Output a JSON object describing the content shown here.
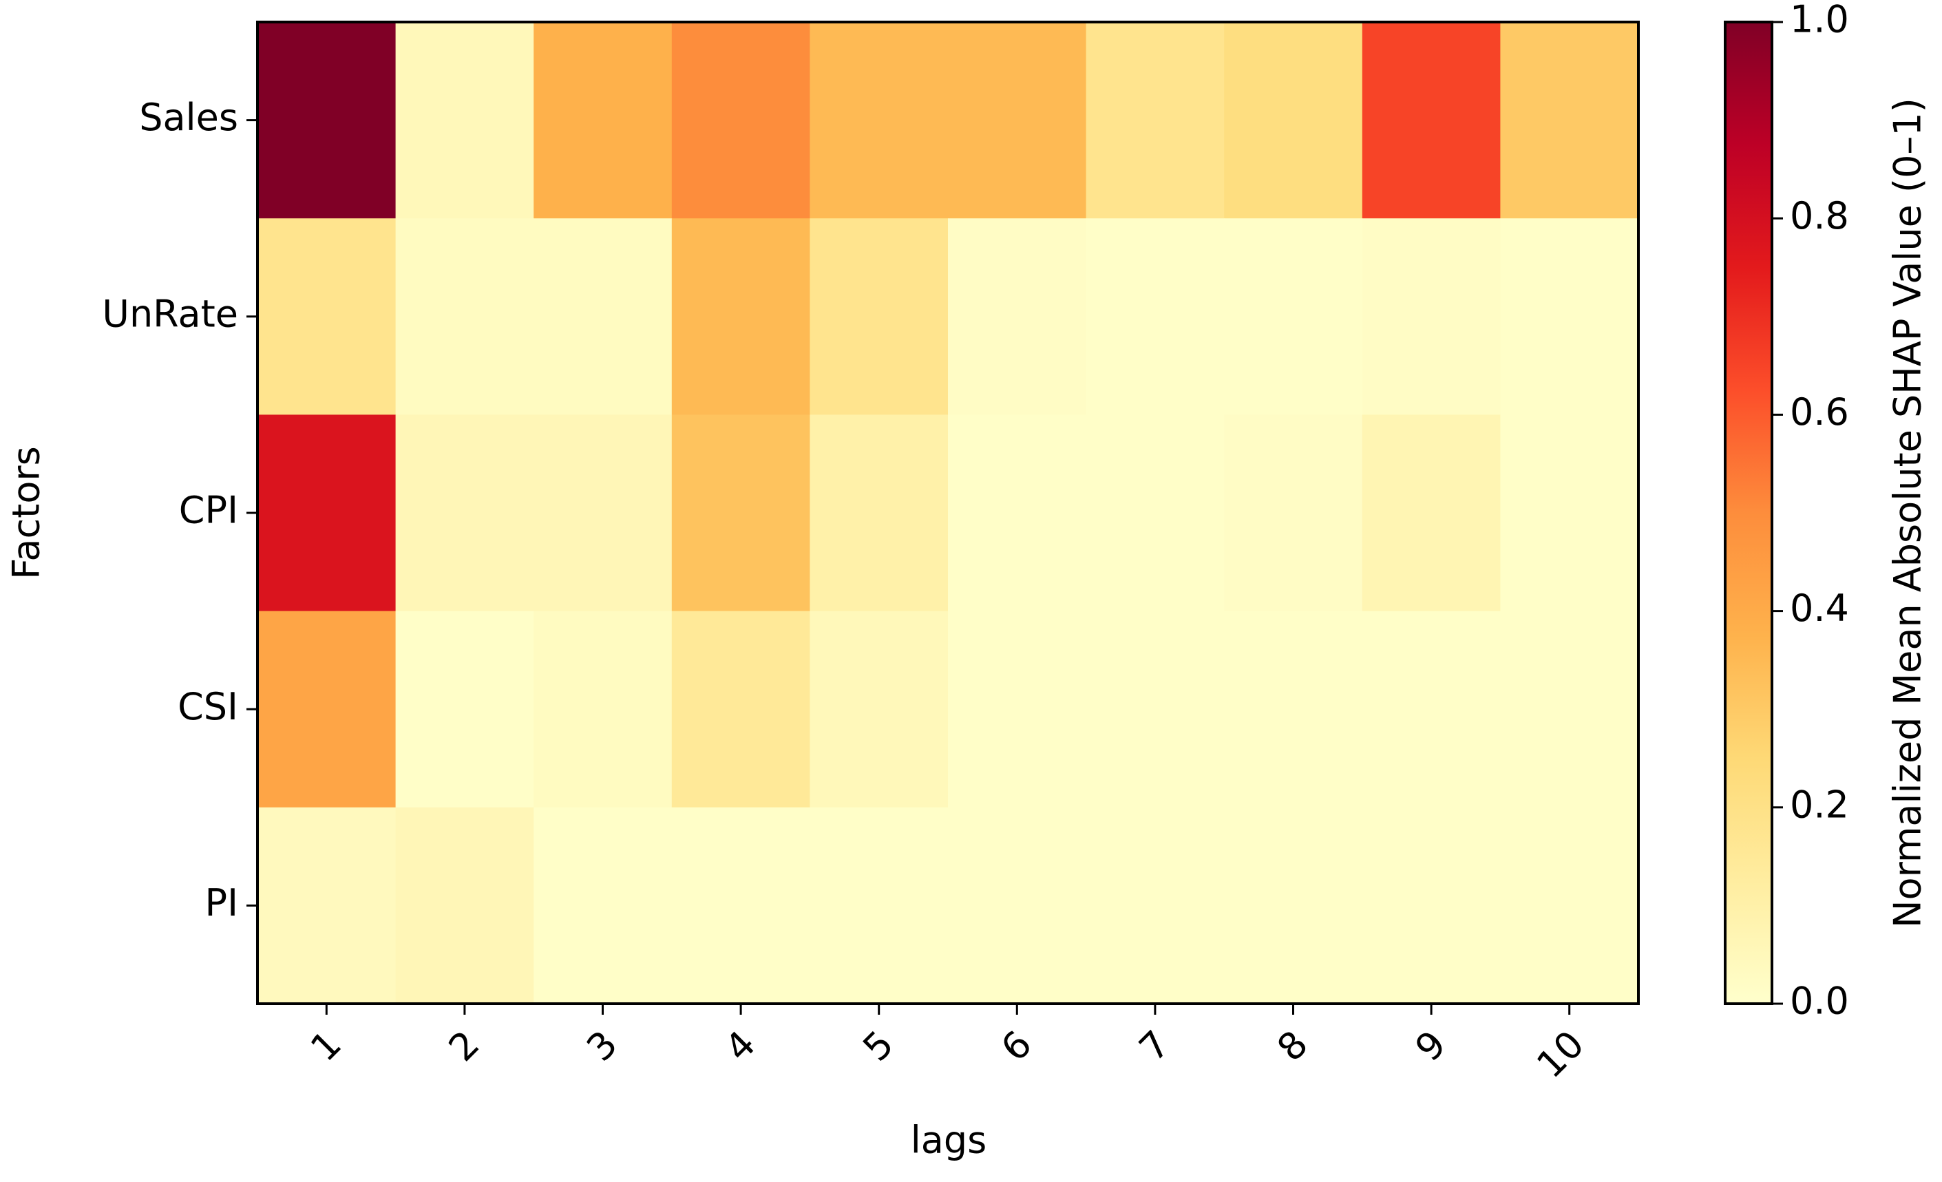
{
  "chart_data": {
    "type": "heatmap",
    "x_label": "lags",
    "y_label": "Factors",
    "categories": [
      "1",
      "2",
      "3",
      "4",
      "5",
      "6",
      "7",
      "8",
      "9",
      "10"
    ],
    "rows": [
      "Sales",
      "UnRate",
      "CPI",
      "CSI",
      "PI"
    ],
    "values": [
      [
        1.0,
        0.05,
        0.38,
        0.5,
        0.35,
        0.35,
        0.18,
        0.22,
        0.65,
        0.3
      ],
      [
        0.18,
        0.03,
        0.03,
        0.35,
        0.18,
        0.02,
        0.01,
        0.01,
        0.02,
        0.01
      ],
      [
        0.78,
        0.06,
        0.06,
        0.32,
        0.1,
        0.01,
        0.01,
        0.02,
        0.07,
        0.01
      ],
      [
        0.42,
        0.01,
        0.03,
        0.15,
        0.05,
        0.01,
        0.01,
        0.01,
        0.01,
        0.01
      ],
      [
        0.04,
        0.06,
        0.01,
        0.01,
        0.01,
        0.01,
        0.01,
        0.01,
        0.01,
        0.01
      ]
    ],
    "colormap": [
      "#ffffcc",
      "#ffeda0",
      "#fed976",
      "#feb24c",
      "#fd8d3c",
      "#fc4e2a",
      "#e31a1c",
      "#bd0026",
      "#800026"
    ],
    "colorbar_label": "Normalized Mean Absolute SHAP Value (0–1)",
    "clim": [
      0,
      1
    ],
    "cticks": [
      {
        "value": 0,
        "label": "0.0"
      },
      0.2,
      0.4,
      0.6,
      0.8,
      {
        "value": 1,
        "label": "1.0"
      }
    ]
  }
}
